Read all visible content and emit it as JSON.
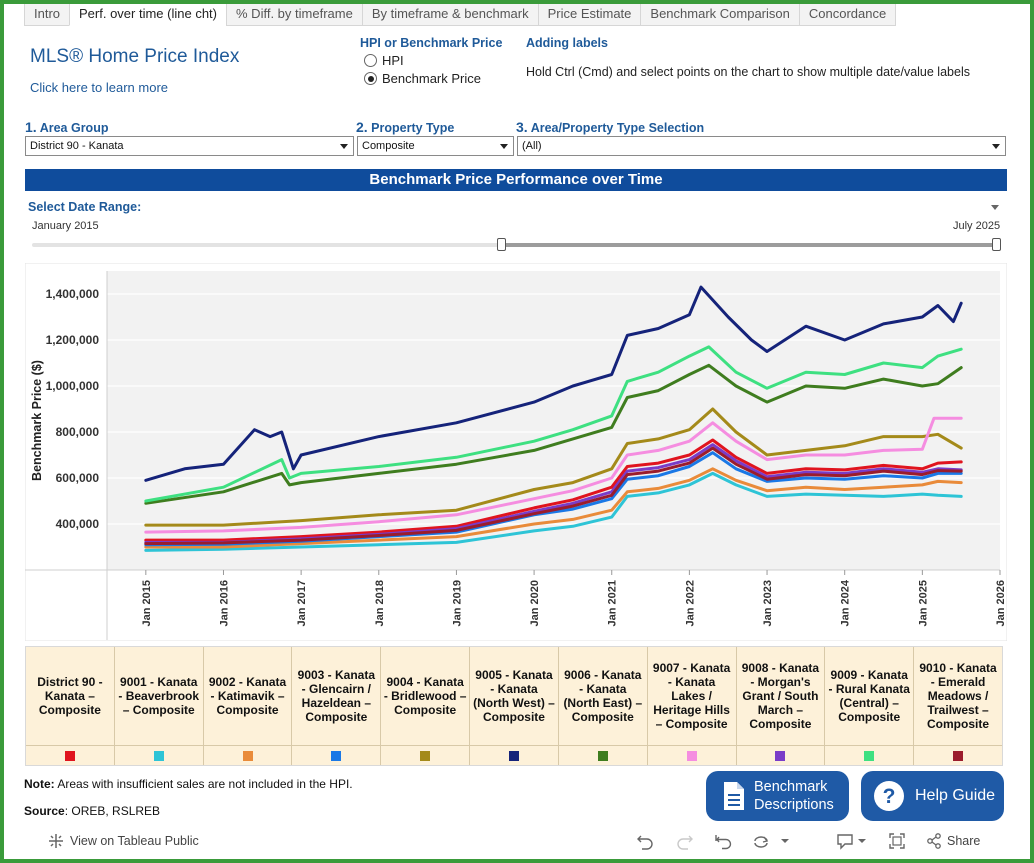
{
  "tabs": [
    {
      "label": "Intro",
      "active": false
    },
    {
      "label": "Perf. over time (line cht)",
      "active": true
    },
    {
      "label": "% Diff. by timeframe",
      "active": false
    },
    {
      "label": "By timeframe & benchmark",
      "active": false
    },
    {
      "label": "Price Estimate",
      "active": false
    },
    {
      "label": "Benchmark Comparison",
      "active": false
    },
    {
      "label": "Concordance",
      "active": false
    }
  ],
  "header": {
    "title": "MLS® Home Price Index",
    "learn_more": "Click here to learn more"
  },
  "hpi_toggle": {
    "label": "HPI or Benchmark Price",
    "options": [
      "HPI",
      "Benchmark Price"
    ],
    "selected": "Benchmark Price"
  },
  "adding_labels": {
    "title": "Adding labels",
    "text": "Hold Ctrl (Cmd) and select points on the chart to show multiple date/value labels"
  },
  "filters": {
    "area_group": {
      "num": "1.",
      "label": "Area Group",
      "value": "District 90 - Kanata"
    },
    "property_type": {
      "num": "2.",
      "label": "Property Type",
      "value": "Composite"
    },
    "selection": {
      "num": "3.",
      "label": "Area/Property Type Selection",
      "value": "(All)"
    }
  },
  "banner": "Benchmark Price Performance over Time",
  "date_range": {
    "label": "Select Date Range:",
    "start": "January 2015",
    "end": "July 2025"
  },
  "chart_data": {
    "type": "line",
    "title": "Benchmark Price Performance over Time",
    "xlabel": "",
    "ylabel": "Benchmark Price ($)",
    "ylim": [
      200000,
      1500000
    ],
    "xlim": [
      2014.5,
      2026.0
    ],
    "y_ticks": [
      400000,
      600000,
      800000,
      1000000,
      1200000,
      1400000
    ],
    "y_tick_labels": [
      "400,000",
      "600,000",
      "800,000",
      "1,000,000",
      "1,200,000",
      "1,400,000"
    ],
    "x_ticks": [
      2015,
      2016,
      2017,
      2018,
      2019,
      2020,
      2021,
      2022,
      2023,
      2024,
      2025,
      2026
    ],
    "x_tick_labels": [
      "Jan 2015",
      "Jan 2016",
      "Jan 2017",
      "Jan 2018",
      "Jan 2019",
      "Jan 2020",
      "Jan 2021",
      "Jan 2022",
      "Jan 2023",
      "Jan 2024",
      "Jan 2025",
      "Jan 2026"
    ],
    "grid": true,
    "series": [
      {
        "name": "District 90 - Kanata – Composite",
        "color": "#e0141e",
        "x": [
          2015.0,
          2016.0,
          2017.0,
          2018.0,
          2019.0,
          2020.0,
          2020.5,
          2021.0,
          2021.2,
          2021.6,
          2022.0,
          2022.3,
          2022.6,
          2023.0,
          2023.5,
          2024.0,
          2024.5,
          2025.0,
          2025.2,
          2025.5
        ],
        "values": [
          330000,
          330000,
          345000,
          365000,
          390000,
          470000,
          505000,
          560000,
          650000,
          665000,
          700000,
          765000,
          690000,
          620000,
          640000,
          635000,
          655000,
          640000,
          665000,
          670000
        ]
      },
      {
        "name": "9001 - Kanata - Beaverbrook – Composite",
        "color": "#2ec4d6",
        "x": [
          2015.0,
          2016.0,
          2017.0,
          2018.0,
          2019.0,
          2020.0,
          2020.5,
          2021.0,
          2021.2,
          2021.6,
          2022.0,
          2022.3,
          2022.6,
          2023.0,
          2023.5,
          2024.0,
          2024.5,
          2025.0,
          2025.2,
          2025.5
        ],
        "values": [
          285000,
          290000,
          300000,
          310000,
          320000,
          370000,
          390000,
          430000,
          520000,
          535000,
          570000,
          620000,
          570000,
          520000,
          530000,
          525000,
          520000,
          530000,
          525000,
          520000
        ]
      },
      {
        "name": "9002 - Kanata - Katimavik – Composite",
        "color": "#e98b3a",
        "x": [
          2015.0,
          2016.0,
          2017.0,
          2018.0,
          2019.0,
          2020.0,
          2020.5,
          2021.0,
          2021.2,
          2021.6,
          2022.0,
          2022.3,
          2022.6,
          2023.0,
          2023.5,
          2024.0,
          2024.5,
          2025.0,
          2025.2,
          2025.5
        ],
        "values": [
          300000,
          300000,
          315000,
          330000,
          345000,
          400000,
          420000,
          460000,
          540000,
          555000,
          590000,
          640000,
          590000,
          545000,
          560000,
          550000,
          560000,
          570000,
          585000,
          580000
        ]
      },
      {
        "name": "9003 - Kanata - Glencairn / Hazeldean – Composite",
        "color": "#1a78e6",
        "x": [
          2015.0,
          2016.0,
          2017.0,
          2018.0,
          2019.0,
          2020.0,
          2020.5,
          2021.0,
          2021.2,
          2021.6,
          2022.0,
          2022.3,
          2022.6,
          2023.0,
          2023.5,
          2024.0,
          2024.5,
          2025.0,
          2025.2,
          2025.5
        ],
        "values": [
          310000,
          312000,
          325000,
          345000,
          365000,
          440000,
          465000,
          510000,
          595000,
          610000,
          650000,
          710000,
          640000,
          585000,
          600000,
          595000,
          610000,
          600000,
          620000,
          620000
        ]
      },
      {
        "name": "9004 - Kanata - Bridlewood – Composite",
        "color": "#a48a1a",
        "x": [
          2015.0,
          2016.0,
          2017.0,
          2018.0,
          2019.0,
          2020.0,
          2020.5,
          2021.0,
          2021.2,
          2021.6,
          2022.0,
          2022.3,
          2022.6,
          2023.0,
          2023.5,
          2024.0,
          2024.5,
          2025.0,
          2025.2,
          2025.5
        ],
        "values": [
          395000,
          395000,
          415000,
          440000,
          460000,
          550000,
          580000,
          640000,
          750000,
          770000,
          810000,
          900000,
          800000,
          700000,
          720000,
          740000,
          780000,
          780000,
          790000,
          730000
        ]
      },
      {
        "name": "9005 - Kanata - Kanata (North West) – Composite",
        "color": "#15237a",
        "x": [
          2015.0,
          2015.5,
          2016.0,
          2016.4,
          2016.6,
          2016.75,
          2016.9,
          2017.0,
          2018.0,
          2019.0,
          2020.0,
          2020.5,
          2021.0,
          2021.2,
          2021.6,
          2022.0,
          2022.15,
          2022.5,
          2022.8,
          2023.0,
          2023.5,
          2024.0,
          2024.5,
          2025.0,
          2025.2,
          2025.4,
          2025.5
        ],
        "values": [
          590000,
          640000,
          660000,
          810000,
          780000,
          800000,
          640000,
          700000,
          780000,
          840000,
          930000,
          1000000,
          1050000,
          1220000,
          1250000,
          1310000,
          1430000,
          1300000,
          1200000,
          1150000,
          1260000,
          1200000,
          1270000,
          1300000,
          1350000,
          1280000,
          1360000
        ]
      },
      {
        "name": "9006 - Kanata - Kanata (North East) – Composite",
        "color": "#3f7d1f",
        "x": [
          2015.0,
          2016.0,
          2016.75,
          2016.85,
          2017.0,
          2018.0,
          2019.0,
          2020.0,
          2020.5,
          2021.0,
          2021.2,
          2021.6,
          2022.0,
          2022.25,
          2022.6,
          2023.0,
          2023.5,
          2024.0,
          2024.5,
          2025.0,
          2025.2,
          2025.5
        ],
        "values": [
          490000,
          540000,
          620000,
          570000,
          580000,
          620000,
          660000,
          720000,
          770000,
          820000,
          950000,
          980000,
          1050000,
          1090000,
          1000000,
          930000,
          1000000,
          990000,
          1030000,
          1000000,
          1010000,
          1080000
        ]
      },
      {
        "name": "9007 - Kanata - Kanata Lakes / Heritage Hills – Composite",
        "color": "#f58de0",
        "x": [
          2015.0,
          2016.0,
          2017.0,
          2018.0,
          2019.0,
          2020.0,
          2020.5,
          2021.0,
          2021.2,
          2021.6,
          2022.0,
          2022.3,
          2022.6,
          2023.0,
          2023.5,
          2024.0,
          2024.5,
          2025.0,
          2025.15,
          2025.5
        ],
        "values": [
          365000,
          370000,
          385000,
          410000,
          440000,
          510000,
          545000,
          600000,
          700000,
          720000,
          760000,
          840000,
          760000,
          680000,
          700000,
          700000,
          720000,
          725000,
          860000,
          860000
        ]
      },
      {
        "name": "9008 - Kanata - Morgan's Grant / South March – Composite",
        "color": "#7a3cc8",
        "x": [
          2015.0,
          2016.0,
          2017.0,
          2018.0,
          2019.0,
          2020.0,
          2020.5,
          2021.0,
          2021.2,
          2021.6,
          2022.0,
          2022.3,
          2022.6,
          2023.0,
          2023.5,
          2024.0,
          2024.5,
          2025.0,
          2025.2,
          2025.5
        ],
        "values": [
          320000,
          320000,
          335000,
          355000,
          380000,
          455000,
          490000,
          540000,
          630000,
          645000,
          680000,
          745000,
          675000,
          605000,
          625000,
          620000,
          640000,
          625000,
          640000,
          635000
        ]
      },
      {
        "name": "9009 - Kanata - Rural Kanata (Central) – Composite",
        "color": "#3ee081",
        "x": [
          2015.0,
          2016.0,
          2016.75,
          2016.85,
          2017.0,
          2018.0,
          2019.0,
          2020.0,
          2020.5,
          2021.0,
          2021.2,
          2021.6,
          2022.0,
          2022.25,
          2022.6,
          2023.0,
          2023.5,
          2024.0,
          2024.5,
          2025.0,
          2025.2,
          2025.5
        ],
        "values": [
          500000,
          560000,
          680000,
          600000,
          620000,
          650000,
          690000,
          760000,
          810000,
          870000,
          1020000,
          1060000,
          1130000,
          1170000,
          1060000,
          990000,
          1060000,
          1050000,
          1100000,
          1080000,
          1130000,
          1160000
        ]
      },
      {
        "name": "9010 - Kanata - Emerald Meadows / Trailwest – Composite",
        "color": "#9b1c2c",
        "x": [
          2015.0,
          2016.0,
          2017.0,
          2018.0,
          2019.0,
          2020.0,
          2020.5,
          2021.0,
          2021.2,
          2021.6,
          2022.0,
          2022.3,
          2022.6,
          2023.0,
          2023.5,
          2024.0,
          2024.5,
          2025.0,
          2025.2,
          2025.5
        ],
        "values": [
          315000,
          318000,
          330000,
          350000,
          372000,
          445000,
          478000,
          525000,
          615000,
          630000,
          665000,
          730000,
          660000,
          595000,
          615000,
          610000,
          630000,
          615000,
          632000,
          630000
        ]
      }
    ]
  },
  "legend": [
    {
      "label": "District 90 - Kanata – Composite",
      "color": "#e0141e"
    },
    {
      "label": "9001 - Kanata - Beaverbrook – Composite",
      "color": "#2ec4d6"
    },
    {
      "label": "9002 - Kanata - Katimavik – Composite",
      "color": "#e98b3a"
    },
    {
      "label": "9003 - Kanata - Glencairn / Hazeldean – Composite",
      "color": "#1a78e6"
    },
    {
      "label": "9004 - Kanata - Bridlewood – Composite",
      "color": "#a48a1a"
    },
    {
      "label": "9005 - Kanata - Kanata (North West) – Composite",
      "color": "#15237a"
    },
    {
      "label": "9006 - Kanata - Kanata (North East) – Composite",
      "color": "#3f7d1f"
    },
    {
      "label": "9007 - Kanata - Kanata Lakes / Heritage Hills – Composite",
      "color": "#f58de0"
    },
    {
      "label": "9008 - Kanata - Morgan's Grant / South March – Composite",
      "color": "#7a3cc8"
    },
    {
      "label": "9009 - Kanata - Rural Kanata (Central) – Composite",
      "color": "#3ee081"
    },
    {
      "label": "9010 - Kanata - Emerald Meadows / Trailwest – Composite",
      "color": "#9b1c2c"
    }
  ],
  "note": {
    "prefix": "Note:",
    "text": " Areas with insufficient sales are not included in the HPI."
  },
  "source": {
    "prefix": "Source",
    "text": ": OREB, RSLREB"
  },
  "buttons": {
    "benchmark_line1": "Benchmark",
    "benchmark_line2": "Descriptions",
    "help": "Help Guide"
  },
  "toolbar": {
    "view_public": "View on Tableau Public",
    "share": "Share"
  }
}
